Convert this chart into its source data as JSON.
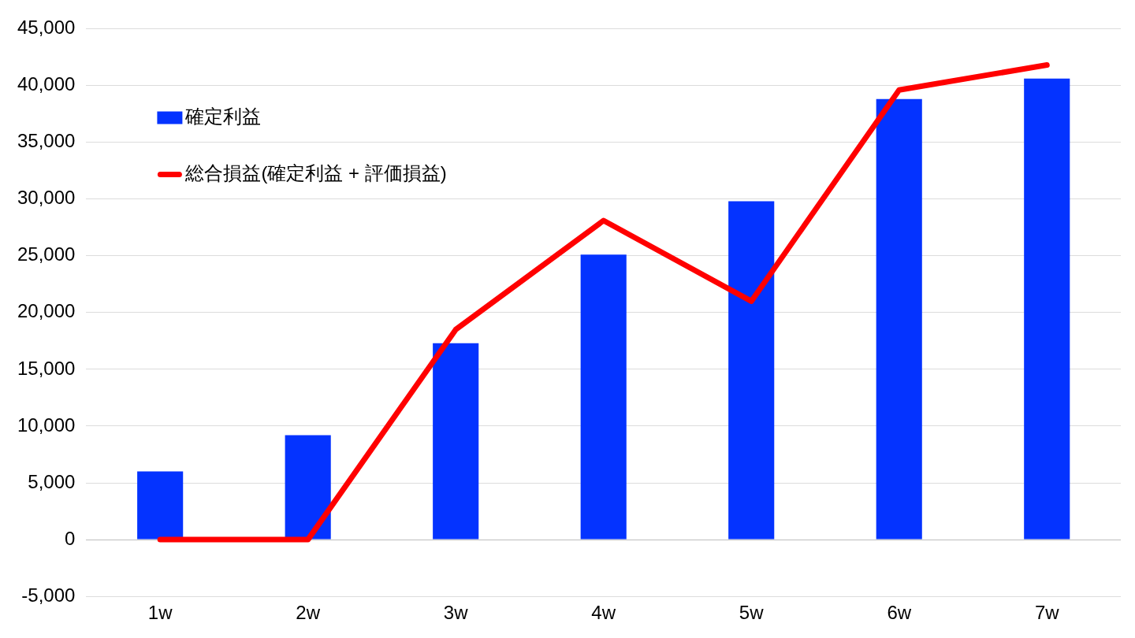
{
  "chart_data": {
    "type": "bar",
    "categories": [
      "1w",
      "2w",
      "3w",
      "4w",
      "5w",
      "6w",
      "7w"
    ],
    "series": [
      {
        "name": "確定利益",
        "color": "#0433ff",
        "values": [
          6000,
          9200,
          17300,
          25100,
          29800,
          38800,
          40600
        ]
      },
      {
        "name": "総合損益(確定利益 + 評価損益)",
        "type": "line",
        "color": "#ff0000",
        "values": [
          0,
          0,
          18500,
          28100,
          21000,
          39600,
          41800
        ]
      }
    ],
    "ylim": [
      -5000,
      45000
    ],
    "yticks": [
      {
        "value": -5000,
        "label": "-5,000"
      },
      0,
      {
        "value": 5000,
        "label": "5,000"
      },
      {
        "value": 10000,
        "label": "10,000"
      },
      {
        "value": 15000,
        "label": "15,000"
      },
      {
        "value": 20000,
        "label": "20,000"
      },
      {
        "value": 25000,
        "label": "25,000"
      },
      {
        "value": 30000,
        "label": "30,000"
      },
      {
        "value": 35000,
        "label": "35,000"
      },
      {
        "value": 40000,
        "label": "40,000"
      },
      {
        "value": 45000,
        "label": "45,000"
      }
    ],
    "grid": "y",
    "legend": "top left",
    "marker": "none"
  }
}
